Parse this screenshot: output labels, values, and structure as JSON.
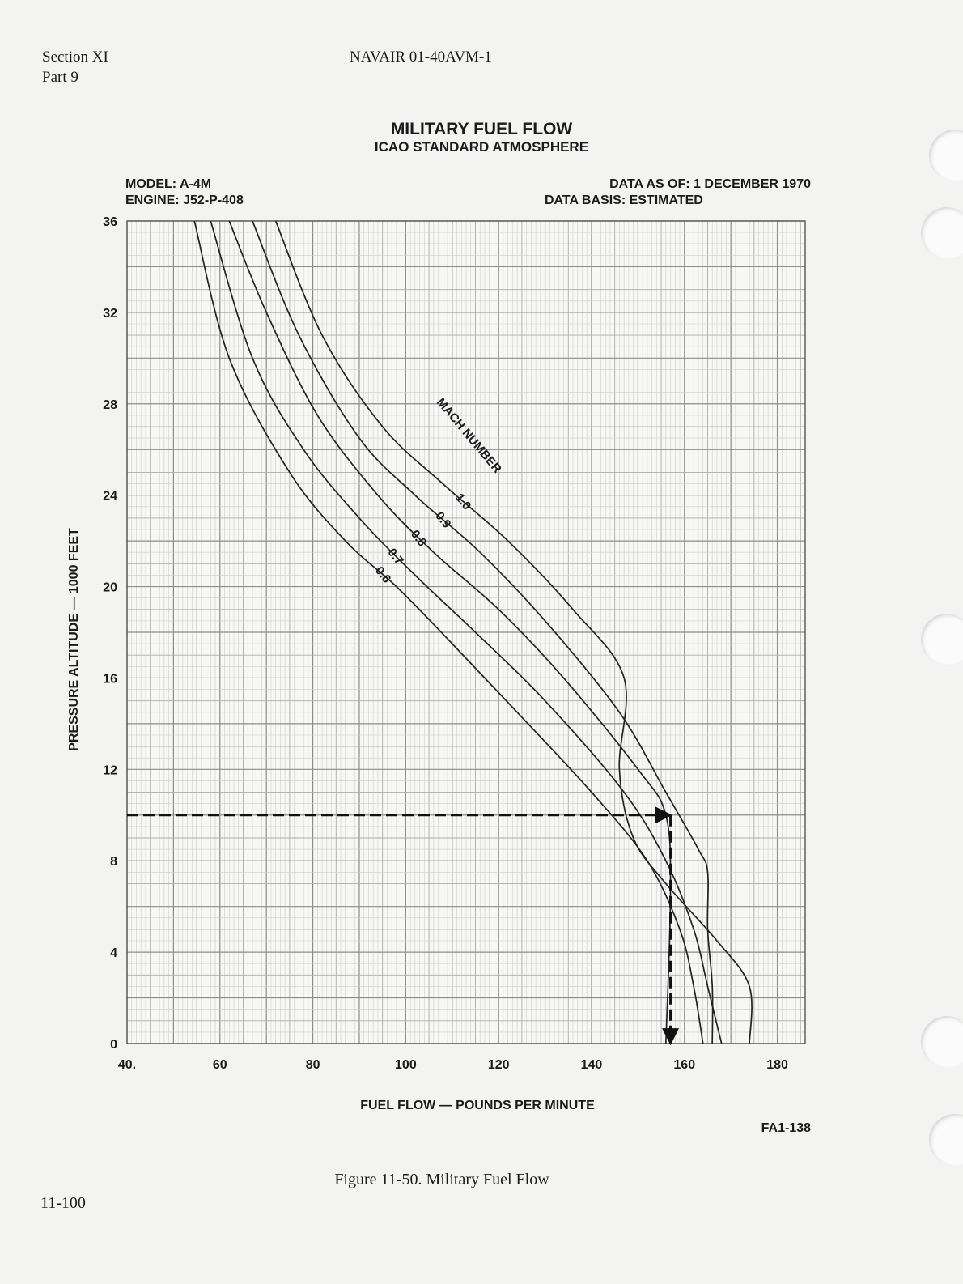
{
  "header": {
    "section": "Section XI",
    "part": "Part 9",
    "document": "NAVAIR 01-40AVM-1"
  },
  "footer": {
    "page_number": "11-100",
    "figure_caption": "Figure 11-50.  Military Fuel Flow",
    "figure_code": "FA1-138"
  },
  "chart_info": {
    "model": "MODEL:  A-4M",
    "engine": "ENGINE:  J52-P-408",
    "data_as_of": "DATA  AS  OF:  1  DECEMBER  1970",
    "data_basis": "DATA  BASIS:  ESTIMATED",
    "curve_group_label": "MACH NUMBER"
  },
  "chart_data": {
    "type": "line",
    "title": "MILITARY  FUEL  FLOW",
    "subtitle": "ICAO  STANDARD  ATMOSPHERE",
    "xlabel": "FUEL  FLOW — POUNDS  PER  MINUTE",
    "ylabel": "PRESSURE  ALTITUDE — 1000  FEET",
    "xlim": [
      40,
      186
    ],
    "ylim": [
      0,
      36
    ],
    "x_ticks": [
      "40.",
      "60",
      "80",
      "100",
      "120",
      "140",
      "160",
      "180"
    ],
    "x_tick_values": [
      40,
      60,
      80,
      100,
      120,
      140,
      160,
      180
    ],
    "y_ticks": [
      "0",
      "4",
      "8",
      "12",
      "16",
      "20",
      "24",
      "28",
      "32",
      "36"
    ],
    "y_tick_values": [
      0,
      4,
      8,
      12,
      16,
      20,
      24,
      28,
      32,
      36
    ],
    "grid": true,
    "series": [
      {
        "name": "0.6",
        "points": [
          [
            54.5,
            36
          ],
          [
            62,
            30
          ],
          [
            75,
            25
          ],
          [
            87,
            22
          ],
          [
            98,
            20
          ],
          [
            110,
            17.5
          ],
          [
            124,
            14.5
          ],
          [
            140,
            11
          ],
          [
            152,
            8
          ],
          [
            159,
            5
          ],
          [
            162,
            2.5
          ],
          [
            164,
            0
          ]
        ]
      },
      {
        "name": "0.7",
        "points": [
          [
            58,
            36
          ],
          [
            67,
            30
          ],
          [
            78,
            26
          ],
          [
            90,
            23
          ],
          [
            102,
            20.5
          ],
          [
            115,
            18
          ],
          [
            130,
            15
          ],
          [
            147,
            11
          ],
          [
            156,
            8
          ],
          [
            162,
            5
          ],
          [
            165,
            2.5
          ],
          [
            168,
            0
          ]
        ]
      },
      {
        "name": "0.8",
        "points": [
          [
            62,
            36
          ],
          [
            70,
            32
          ],
          [
            81,
            27.5
          ],
          [
            94,
            24
          ],
          [
            106,
            21.5
          ],
          [
            120,
            19
          ],
          [
            134,
            16
          ],
          [
            150,
            12
          ],
          [
            156,
            10
          ],
          [
            157,
            6.5
          ],
          [
            156,
            0
          ]
        ]
      },
      {
        "name": "0.9",
        "points": [
          [
            67,
            36
          ],
          [
            77,
            31
          ],
          [
            90,
            26.5
          ],
          [
            102,
            24
          ],
          [
            116,
            21.5
          ],
          [
            130,
            18.5
          ],
          [
            146,
            14.5
          ],
          [
            156,
            11
          ],
          [
            163,
            8.5
          ],
          [
            165,
            7.5
          ],
          [
            165,
            5
          ],
          [
            166,
            2.5
          ],
          [
            166,
            0
          ]
        ]
      },
      {
        "name": "1.0",
        "points": [
          [
            72,
            36
          ],
          [
            82,
            31
          ],
          [
            95,
            27
          ],
          [
            108,
            24.5
          ],
          [
            122,
            22
          ],
          [
            136,
            19
          ],
          [
            147,
            16
          ],
          [
            146,
            12
          ],
          [
            149,
            9
          ],
          [
            156,
            7
          ],
          [
            167,
            4.5
          ],
          [
            174,
            2.5
          ],
          [
            174,
            0
          ]
        ]
      }
    ],
    "annotations": [
      {
        "type": "example-path",
        "points": [
          [
            40,
            10
          ],
          [
            157,
            10
          ],
          [
            157,
            0
          ]
        ]
      }
    ]
  }
}
